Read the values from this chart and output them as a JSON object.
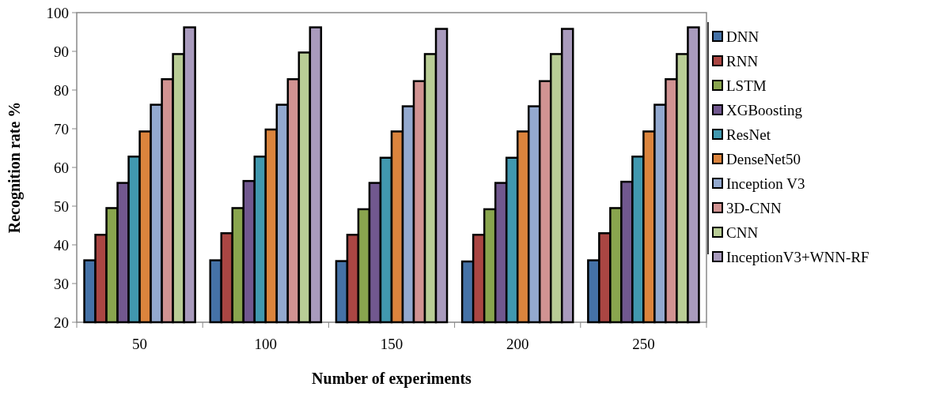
{
  "chart_data": {
    "type": "bar",
    "xlabel": "Number of experiments",
    "ylabel": "Recognition rate %",
    "categories": [
      "50",
      "100",
      "150",
      "200",
      "250"
    ],
    "ylim": [
      20,
      100
    ],
    "yticks": [
      20,
      30,
      40,
      50,
      60,
      70,
      80,
      90,
      100
    ],
    "grid": false,
    "legend": "right",
    "series": [
      {
        "name": "DNN",
        "color": "#4572a7",
        "values": [
          36,
          36,
          35.8,
          35.7,
          36
        ]
      },
      {
        "name": "RNN",
        "color": "#aa4643",
        "values": [
          42.6,
          43,
          42.6,
          42.6,
          43
        ]
      },
      {
        "name": "LSTM",
        "color": "#89a54e",
        "values": [
          49.5,
          49.5,
          49.2,
          49.2,
          49.5
        ]
      },
      {
        "name": "XGBoosting",
        "color": "#71588f",
        "values": [
          56,
          56.5,
          56,
          56,
          56.3
        ]
      },
      {
        "name": "ResNet",
        "color": "#4198af",
        "values": [
          62.8,
          62.8,
          62.5,
          62.5,
          62.8
        ]
      },
      {
        "name": "DenseNet50",
        "color": "#db843d",
        "values": [
          69.3,
          69.8,
          69.3,
          69.3,
          69.3
        ]
      },
      {
        "name": "Inception V3",
        "color": "#93a9cf",
        "values": [
          76.2,
          76.2,
          75.8,
          75.8,
          76.2
        ]
      },
      {
        "name": "3D-CNN",
        "color": "#d19392",
        "values": [
          82.8,
          82.8,
          82.3,
          82.3,
          82.8
        ]
      },
      {
        "name": "CNN",
        "color": "#b9cd96",
        "values": [
          89.3,
          89.7,
          89.3,
          89.3,
          89.3
        ]
      },
      {
        "name": "InceptionV3+WNN-RF",
        "color": "#a99bbd",
        "values": [
          96.2,
          96.2,
          95.8,
          95.8,
          96.2
        ]
      }
    ]
  }
}
